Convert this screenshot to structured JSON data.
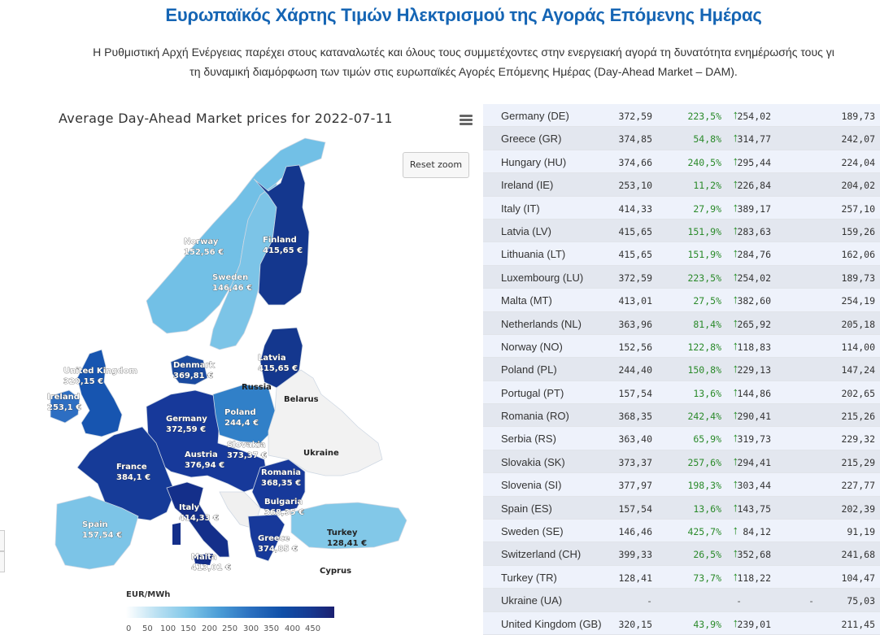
{
  "header": {
    "title": "Ευρωπαϊκός Χάρτης Τιμών Ηλεκτρισμού της Αγοράς Επόμενης Ημέρας",
    "intro_line1": "Η Ρυθμιστική Αρχή Ενέργειας παρέχει στους καταναλωτές και όλους τους συμμετέχοντες στην ενεργειακή αγορά τη δυνατότητα ενημέρωσής τους γι",
    "intro_line2": "τη δυναμική διαμόρφωση των τιμών στις ευρωπαϊκές Αγορές Επόμενης Ημέρας (Day-Ahead Market – DAM)."
  },
  "map": {
    "title": "Average Day-Ahead Market prices for 2022-07-11",
    "menu_icon": "hamburger-menu-icon",
    "reset_zoom_label": "Reset zoom",
    "legend": {
      "title": "EUR/MWh",
      "ticks": [
        "0",
        "50",
        "100",
        "150",
        "200",
        "250",
        "300",
        "350",
        "400",
        "450"
      ],
      "min_color": "#ffffff",
      "max_color": "#1b2070"
    },
    "labels": {
      "norway": {
        "name": "Norway",
        "value": "152,56 €"
      },
      "finland": {
        "name": "Finland",
        "value": "415,65 €"
      },
      "sweden": {
        "name": "Sweden",
        "value": "146,46 €"
      },
      "denmark": {
        "name": "Denmark",
        "value": "369,81 €"
      },
      "latvia": {
        "name": "Latvia",
        "value": "415,65 €"
      },
      "uk": {
        "name": "United Kingdom",
        "value": "320,15 €"
      },
      "ireland": {
        "name": "Ireland",
        "value": "253,1 €"
      },
      "germany": {
        "name": "Germany",
        "value": "372,59 €"
      },
      "poland": {
        "name": "Poland",
        "value": "244,4 €"
      },
      "slovakia": {
        "name": "Slovakia",
        "value": "373,37 €"
      },
      "austria": {
        "name": "Austria",
        "value": "376,94 €"
      },
      "france": {
        "name": "France",
        "value": "384,1 €"
      },
      "romania": {
        "name": "Romania",
        "value": "368,35 €"
      },
      "bulgaria": {
        "name": "Bulgaria",
        "value": "368,35 €"
      },
      "italy": {
        "name": "Italy",
        "value": "414,33 €"
      },
      "spain": {
        "name": "Spain",
        "value": "157,54 €"
      },
      "greece": {
        "name": "Greece",
        "value": "374,85 €"
      },
      "turkey": {
        "name": "Turkey",
        "value": "128,41 €"
      },
      "malta": {
        "name": "Malta",
        "value": "413,01 €"
      },
      "russia": {
        "name": "Russia"
      },
      "belarus": {
        "name": "Belarus"
      },
      "ukraine": {
        "name": "Ukraine"
      },
      "cyprus": {
        "name": "Cyprus"
      }
    }
  },
  "table": {
    "rows": [
      {
        "country": "Germany (DE)",
        "price": "372,59",
        "change": "223,5%",
        "trend": "up",
        "col3": "254,02",
        "col4": "189,73"
      },
      {
        "country": "Greece (GR)",
        "price": "374,85",
        "change": "54,8%",
        "trend": "up",
        "col3": "314,77",
        "col4": "242,07"
      },
      {
        "country": "Hungary (HU)",
        "price": "374,66",
        "change": "240,5%",
        "trend": "up",
        "col3": "295,44",
        "col4": "224,04"
      },
      {
        "country": "Ireland (IE)",
        "price": "253,10",
        "change": "11,2%",
        "trend": "up",
        "col3": "226,84",
        "col4": "204,02"
      },
      {
        "country": "Italy (IT)",
        "price": "414,33",
        "change": "27,9%",
        "trend": "up",
        "col3": "389,17",
        "col4": "257,10"
      },
      {
        "country": "Latvia (LV)",
        "price": "415,65",
        "change": "151,9%",
        "trend": "up",
        "col3": "283,63",
        "col4": "159,26"
      },
      {
        "country": "Lithuania (LT)",
        "price": "415,65",
        "change": "151,9%",
        "trend": "up",
        "col3": "284,76",
        "col4": "162,06"
      },
      {
        "country": "Luxembourg (LU)",
        "price": "372,59",
        "change": "223,5%",
        "trend": "up",
        "col3": "254,02",
        "col4": "189,73"
      },
      {
        "country": "Malta (MT)",
        "price": "413,01",
        "change": "27,5%",
        "trend": "up",
        "col3": "382,60",
        "col4": "254,19"
      },
      {
        "country": "Netherlands (NL)",
        "price": "363,96",
        "change": "81,4%",
        "trend": "up",
        "col3": "265,92",
        "col4": "205,18"
      },
      {
        "country": "Norway (NO)",
        "price": "152,56",
        "change": "122,8%",
        "trend": "up",
        "col3": "118,83",
        "col4": "114,00"
      },
      {
        "country": "Poland (PL)",
        "price": "244,40",
        "change": "150,8%",
        "trend": "up",
        "col3": "229,13",
        "col4": "147,24"
      },
      {
        "country": "Portugal (PT)",
        "price": "157,54",
        "change": "13,6%",
        "trend": "up",
        "col3": "144,86",
        "col4": "202,65"
      },
      {
        "country": "Romania (RO)",
        "price": "368,35",
        "change": "242,4%",
        "trend": "up",
        "col3": "290,41",
        "col4": "215,26"
      },
      {
        "country": "Serbia (RS)",
        "price": "363,40",
        "change": "65,9%",
        "trend": "up",
        "col3": "319,73",
        "col4": "229,32"
      },
      {
        "country": "Slovakia (SK)",
        "price": "373,37",
        "change": "257,6%",
        "trend": "up",
        "col3": "294,41",
        "col4": "215,29"
      },
      {
        "country": "Slovenia (SI)",
        "price": "377,97",
        "change": "198,3%",
        "trend": "up",
        "col3": "303,44",
        "col4": "227,77"
      },
      {
        "country": "Spain (ES)",
        "price": "157,54",
        "change": "13,6%",
        "trend": "up",
        "col3": "143,75",
        "col4": "202,39"
      },
      {
        "country": "Sweden (SE)",
        "price": "146,46",
        "change": "425,7%",
        "trend": "up",
        "col3": "84,12",
        "col4": "91,19"
      },
      {
        "country": "Switzerland (CH)",
        "price": "399,33",
        "change": "26,5%",
        "trend": "up",
        "col3": "352,68",
        "col4": "241,68"
      },
      {
        "country": "Turkey (TR)",
        "price": "128,41",
        "change": "73,7%",
        "trend": "up",
        "col3": "118,22",
        "col4": "104,47"
      },
      {
        "country": "Ukraine (UA)",
        "price": "-",
        "change": "-",
        "trend": "none",
        "col3": "-",
        "col4": "75,03"
      },
      {
        "country": "United Kingdom (GB)",
        "price": "320,15",
        "change": "43,9%",
        "trend": "up",
        "col3": "239,01",
        "col4": "211,45"
      }
    ],
    "trend_up_glyph": "↑",
    "colors": {
      "up": "#1a8a1a",
      "row_odd": "#eef2fb",
      "row_even": "#e3e7ef"
    }
  }
}
